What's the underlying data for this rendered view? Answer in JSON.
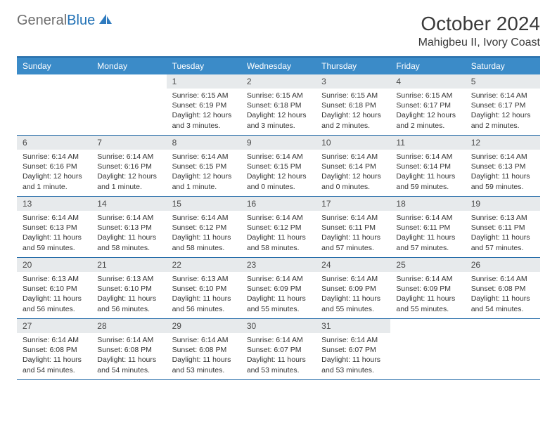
{
  "logo": {
    "text1": "General",
    "text2": "Blue"
  },
  "title": "October 2024",
  "location": "Mahigbeu II, Ivory Coast",
  "colors": {
    "header_bg": "#3b8bc8",
    "border": "#256ca8",
    "date_bg": "#e7eaec",
    "text": "#333333"
  },
  "day_headers": [
    "Sunday",
    "Monday",
    "Tuesday",
    "Wednesday",
    "Thursday",
    "Friday",
    "Saturday"
  ],
  "weeks": [
    [
      {
        "empty": true
      },
      {
        "empty": true
      },
      {
        "date": "1",
        "sunrise": "6:15 AM",
        "sunset": "6:19 PM",
        "daylight": "12 hours and 3 minutes."
      },
      {
        "date": "2",
        "sunrise": "6:15 AM",
        "sunset": "6:18 PM",
        "daylight": "12 hours and 3 minutes."
      },
      {
        "date": "3",
        "sunrise": "6:15 AM",
        "sunset": "6:18 PM",
        "daylight": "12 hours and 2 minutes."
      },
      {
        "date": "4",
        "sunrise": "6:15 AM",
        "sunset": "6:17 PM",
        "daylight": "12 hours and 2 minutes."
      },
      {
        "date": "5",
        "sunrise": "6:14 AM",
        "sunset": "6:17 PM",
        "daylight": "12 hours and 2 minutes."
      }
    ],
    [
      {
        "date": "6",
        "sunrise": "6:14 AM",
        "sunset": "6:16 PM",
        "daylight": "12 hours and 1 minute."
      },
      {
        "date": "7",
        "sunrise": "6:14 AM",
        "sunset": "6:16 PM",
        "daylight": "12 hours and 1 minute."
      },
      {
        "date": "8",
        "sunrise": "6:14 AM",
        "sunset": "6:15 PM",
        "daylight": "12 hours and 1 minute."
      },
      {
        "date": "9",
        "sunrise": "6:14 AM",
        "sunset": "6:15 PM",
        "daylight": "12 hours and 0 minutes."
      },
      {
        "date": "10",
        "sunrise": "6:14 AM",
        "sunset": "6:14 PM",
        "daylight": "12 hours and 0 minutes."
      },
      {
        "date": "11",
        "sunrise": "6:14 AM",
        "sunset": "6:14 PM",
        "daylight": "11 hours and 59 minutes."
      },
      {
        "date": "12",
        "sunrise": "6:14 AM",
        "sunset": "6:13 PM",
        "daylight": "11 hours and 59 minutes."
      }
    ],
    [
      {
        "date": "13",
        "sunrise": "6:14 AM",
        "sunset": "6:13 PM",
        "daylight": "11 hours and 59 minutes."
      },
      {
        "date": "14",
        "sunrise": "6:14 AM",
        "sunset": "6:13 PM",
        "daylight": "11 hours and 58 minutes."
      },
      {
        "date": "15",
        "sunrise": "6:14 AM",
        "sunset": "6:12 PM",
        "daylight": "11 hours and 58 minutes."
      },
      {
        "date": "16",
        "sunrise": "6:14 AM",
        "sunset": "6:12 PM",
        "daylight": "11 hours and 58 minutes."
      },
      {
        "date": "17",
        "sunrise": "6:14 AM",
        "sunset": "6:11 PM",
        "daylight": "11 hours and 57 minutes."
      },
      {
        "date": "18",
        "sunrise": "6:14 AM",
        "sunset": "6:11 PM",
        "daylight": "11 hours and 57 minutes."
      },
      {
        "date": "19",
        "sunrise": "6:13 AM",
        "sunset": "6:11 PM",
        "daylight": "11 hours and 57 minutes."
      }
    ],
    [
      {
        "date": "20",
        "sunrise": "6:13 AM",
        "sunset": "6:10 PM",
        "daylight": "11 hours and 56 minutes."
      },
      {
        "date": "21",
        "sunrise": "6:13 AM",
        "sunset": "6:10 PM",
        "daylight": "11 hours and 56 minutes."
      },
      {
        "date": "22",
        "sunrise": "6:13 AM",
        "sunset": "6:10 PM",
        "daylight": "11 hours and 56 minutes."
      },
      {
        "date": "23",
        "sunrise": "6:14 AM",
        "sunset": "6:09 PM",
        "daylight": "11 hours and 55 minutes."
      },
      {
        "date": "24",
        "sunrise": "6:14 AM",
        "sunset": "6:09 PM",
        "daylight": "11 hours and 55 minutes."
      },
      {
        "date": "25",
        "sunrise": "6:14 AM",
        "sunset": "6:09 PM",
        "daylight": "11 hours and 55 minutes."
      },
      {
        "date": "26",
        "sunrise": "6:14 AM",
        "sunset": "6:08 PM",
        "daylight": "11 hours and 54 minutes."
      }
    ],
    [
      {
        "date": "27",
        "sunrise": "6:14 AM",
        "sunset": "6:08 PM",
        "daylight": "11 hours and 54 minutes."
      },
      {
        "date": "28",
        "sunrise": "6:14 AM",
        "sunset": "6:08 PM",
        "daylight": "11 hours and 54 minutes."
      },
      {
        "date": "29",
        "sunrise": "6:14 AM",
        "sunset": "6:08 PM",
        "daylight": "11 hours and 53 minutes."
      },
      {
        "date": "30",
        "sunrise": "6:14 AM",
        "sunset": "6:07 PM",
        "daylight": "11 hours and 53 minutes."
      },
      {
        "date": "31",
        "sunrise": "6:14 AM",
        "sunset": "6:07 PM",
        "daylight": "11 hours and 53 minutes."
      },
      {
        "empty": true
      },
      {
        "empty": true
      }
    ]
  ],
  "labels": {
    "sunrise": "Sunrise:",
    "sunset": "Sunset:",
    "daylight": "Daylight:"
  }
}
